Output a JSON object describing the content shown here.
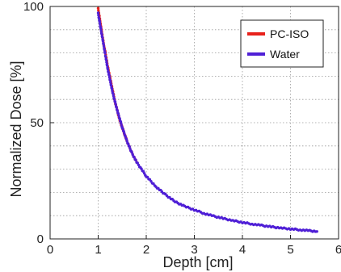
{
  "chart_data": {
    "type": "scatter",
    "xlabel": "Depth [cm]",
    "ylabel": "Normalized Dose [%]",
    "xlim": [
      0,
      6
    ],
    "ylim": [
      0,
      100
    ],
    "xticks": [
      "0",
      "1",
      "2",
      "3",
      "4",
      "5",
      "6"
    ],
    "yticks": [
      "0",
      "50",
      "100"
    ],
    "grid": true,
    "grid_style": "dotted",
    "legend_position": "top-right",
    "series": [
      {
        "name": "PC-ISO",
        "color": "#e8211b",
        "x": [
          1.0,
          1.03,
          1.06,
          1.09,
          1.12,
          1.15,
          1.2,
          1.25,
          1.3,
          1.35,
          1.4,
          1.45,
          1.5,
          1.55,
          1.6,
          1.7,
          1.8
        ],
        "y": [
          99,
          95,
          91,
          87,
          83,
          80,
          74,
          69,
          64,
          59,
          55,
          51,
          48,
          45,
          42,
          37,
          33
        ]
      },
      {
        "name": "Water",
        "color": "#4f1fd6",
        "x": [
          1.0,
          1.05,
          1.1,
          1.15,
          1.2,
          1.25,
          1.3,
          1.4,
          1.5,
          1.6,
          1.7,
          1.8,
          1.9,
          2.0,
          2.2,
          2.4,
          2.6,
          2.8,
          3.0,
          3.2,
          3.4,
          3.6,
          3.8,
          4.0,
          4.2,
          4.4,
          4.6,
          4.8,
          5.0,
          5.2,
          5.4,
          5.55
        ],
        "y": [
          97,
          91,
          85,
          79,
          73,
          68,
          63,
          55,
          48,
          42,
          37,
          33,
          30,
          27,
          22.5,
          19,
          16,
          14,
          12.5,
          11,
          9.8,
          8.8,
          7.9,
          7.1,
          6.4,
          5.8,
          5.2,
          4.7,
          4.3,
          3.9,
          3.5,
          3.2
        ]
      }
    ]
  }
}
